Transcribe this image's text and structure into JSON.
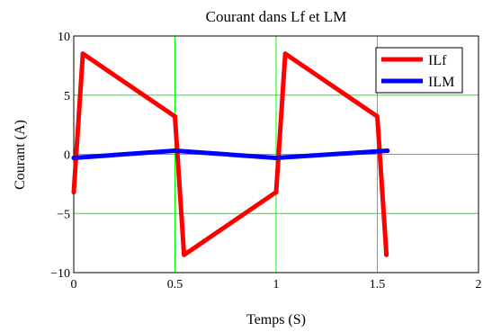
{
  "chart_data": {
    "type": "line",
    "title": "Courant dans Lf et LM",
    "xlabel": "Temps (S)",
    "ylabel": "Courant (A)",
    "xlim": [
      0,
      2
    ],
    "ylim": [
      -10,
      10
    ],
    "xticks": [
      0,
      0.5,
      1,
      1.5,
      2
    ],
    "yticks": [
      -10,
      -5,
      0,
      5,
      10
    ],
    "xtick_labels": [
      "0",
      "0.5",
      "1",
      "1.5",
      "2"
    ],
    "ytick_labels": [
      "−10",
      "−5",
      "0",
      "5",
      "10"
    ],
    "grid": true,
    "legend_position": "top-right",
    "series": [
      {
        "name": "ILf",
        "color": "#ff0000",
        "x": [
          0,
          0.045,
          0.5,
          0.545,
          1.0,
          1.045,
          1.5,
          1.545
        ],
        "y": [
          -3.2,
          8.5,
          3.2,
          -8.5,
          -3.2,
          8.5,
          3.2,
          -8.5
        ]
      },
      {
        "name": "ILM",
        "color": "#0000ff",
        "x": [
          0,
          0.5,
          1.0,
          1.55
        ],
        "y": [
          -0.3,
          0.3,
          -0.3,
          0.3
        ]
      }
    ]
  }
}
